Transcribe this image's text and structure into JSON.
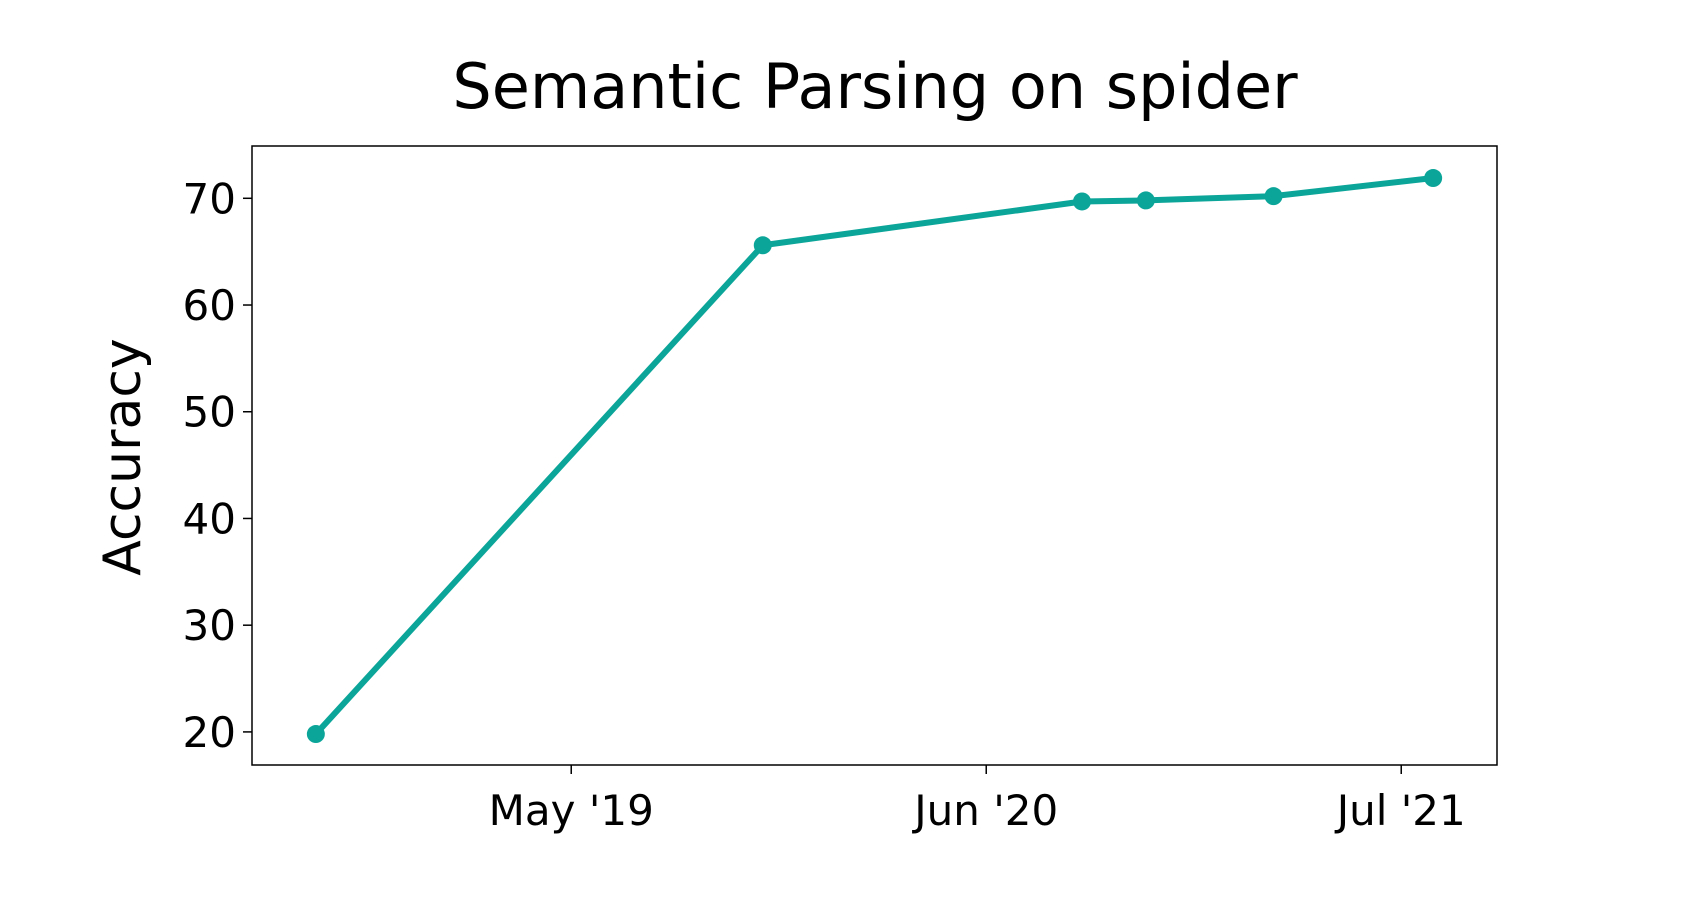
{
  "chart_data": {
    "type": "line",
    "title": "Semantic Parsing on spider",
    "ylabel": "Accuracy",
    "x": [
      "2018-09",
      "2019-11",
      "2020-09",
      "2020-11",
      "2021-03",
      "2021-08"
    ],
    "values": [
      19.8,
      65.6,
      69.7,
      69.8,
      70.2,
      71.9
    ],
    "color": "#0ca599",
    "xlim": [
      "2018-07",
      "2021-10"
    ],
    "xticks": [
      {
        "value": "2019-05",
        "label": "May '19"
      },
      {
        "value": "2020-06",
        "label": "Jun '20"
      },
      {
        "value": "2021-07",
        "label": "Jul '21"
      }
    ],
    "ylim": [
      16.9,
      74.9
    ],
    "yticks": [
      20,
      30,
      40,
      50,
      60,
      70
    ],
    "grid": false
  }
}
